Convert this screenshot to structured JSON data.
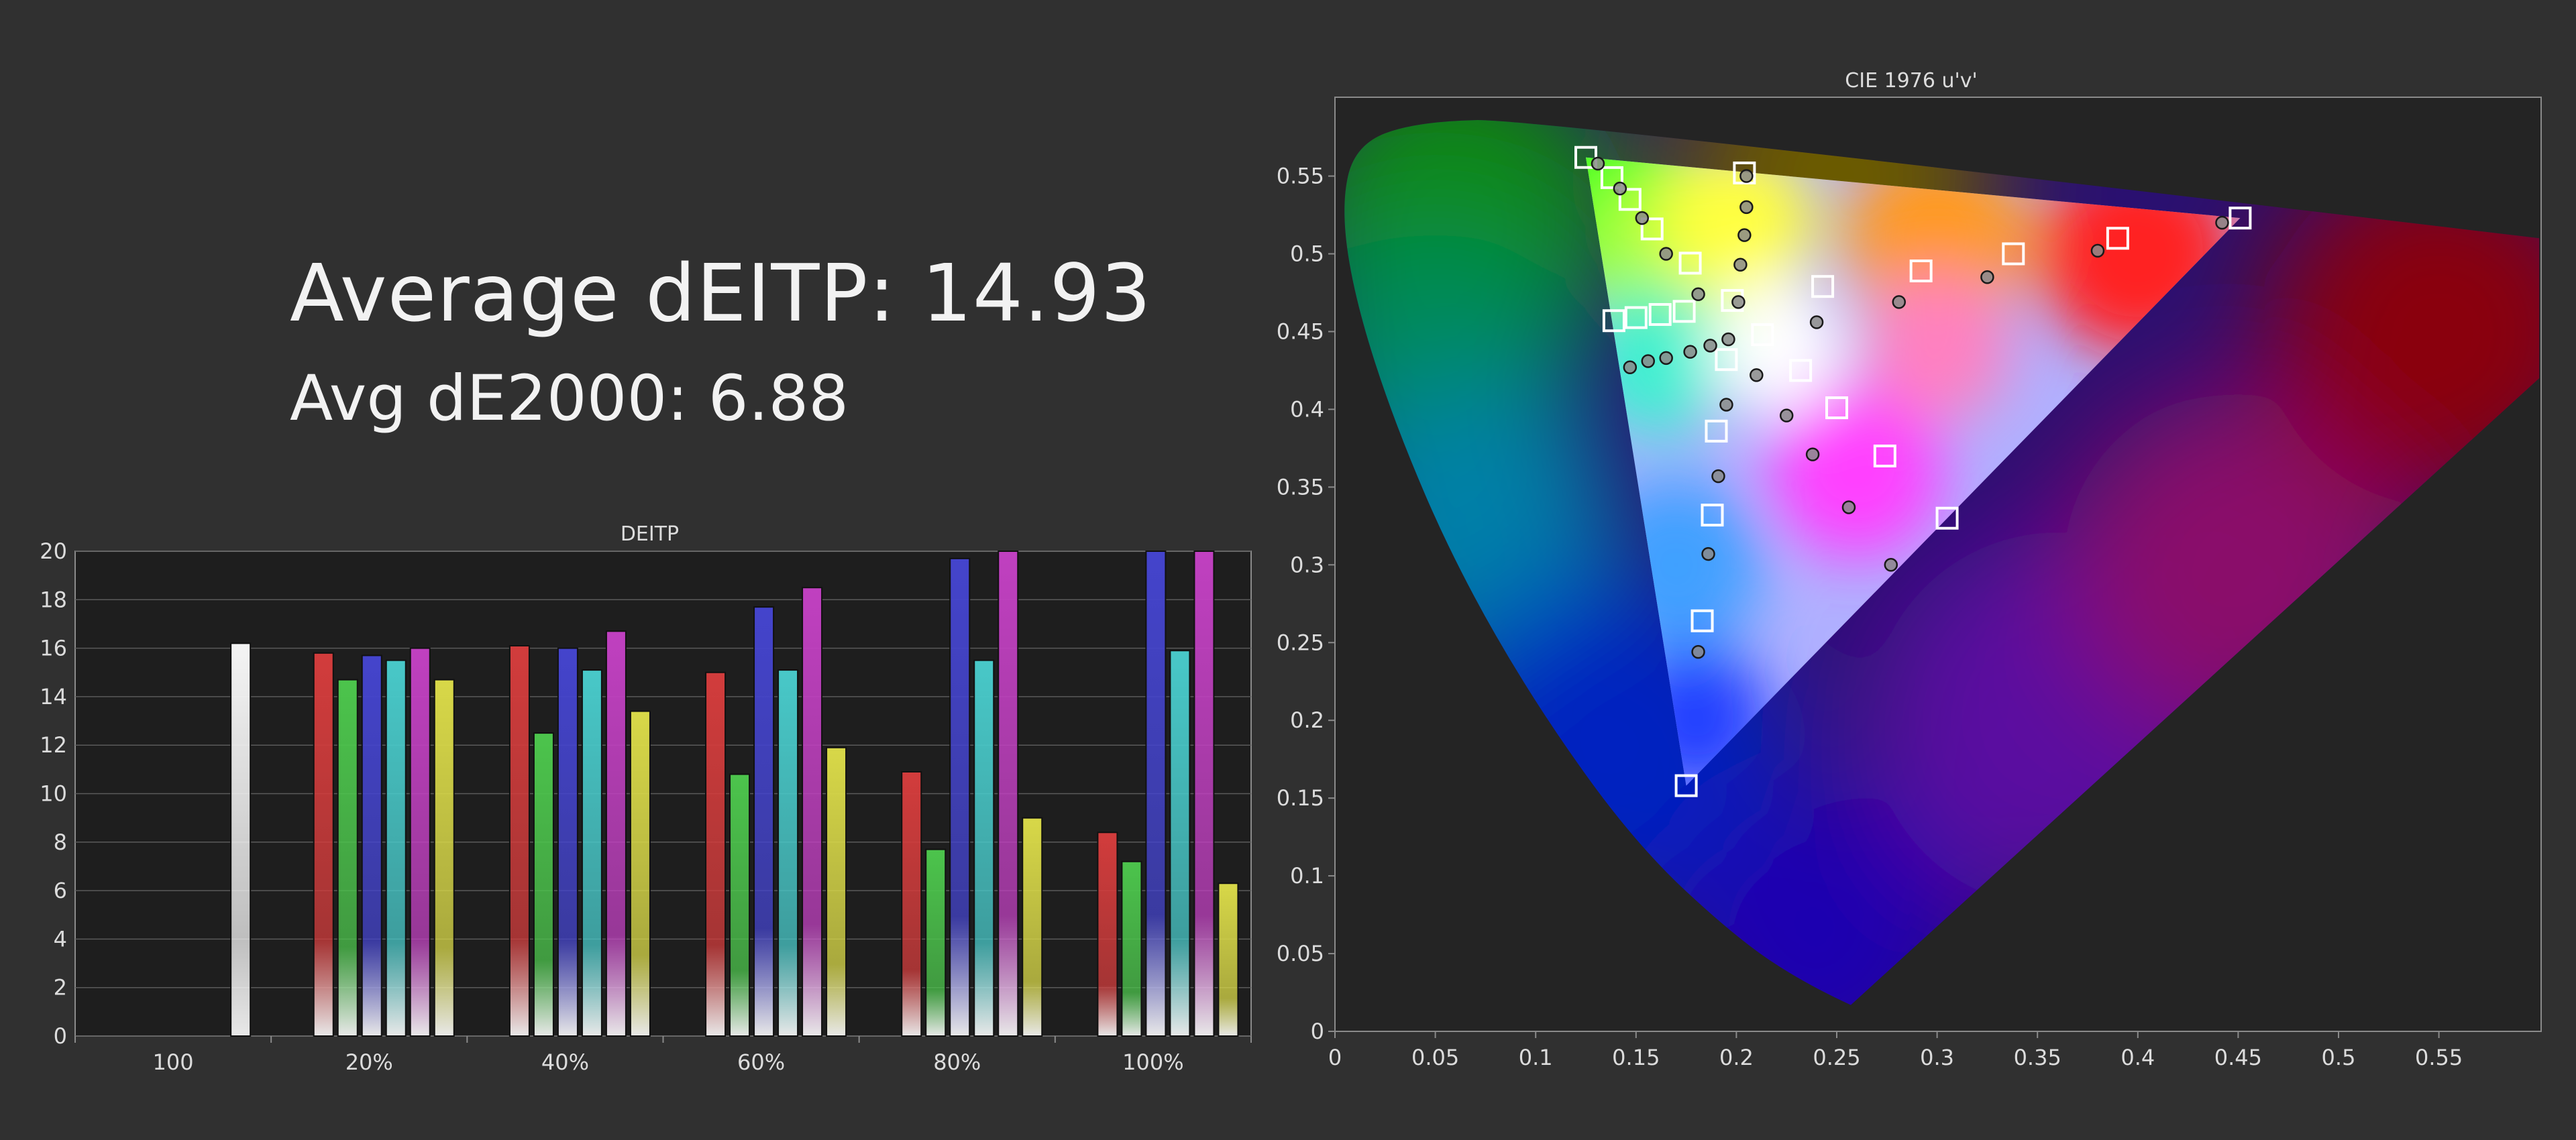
{
  "headline": {
    "average_deitp": "Average dEITP: 14.93",
    "avg_de2000": "Avg dE2000: 6.88"
  },
  "colors": {
    "background": "#303030",
    "white": "#f4f4f4",
    "red": "#d23c3c",
    "green": "#4cc44c",
    "blue": "#4444cc",
    "cyan": "#48c8c8",
    "magenta": "#c040c0",
    "yellow": "#d8d848"
  },
  "chart_data": [
    {
      "type": "bar",
      "title": "DEITP",
      "ylim": [
        0,
        20
      ],
      "yticks": [
        0,
        2,
        4,
        6,
        8,
        10,
        12,
        14,
        16,
        18,
        20
      ],
      "grid": true,
      "categories": [
        "100",
        "20%",
        "40%",
        "60%",
        "80%",
        "100%"
      ],
      "groups": [
        {
          "label": "100",
          "bars": [
            {
              "color": "white",
              "value": 16.2
            }
          ]
        },
        {
          "label": "20%",
          "bars": [
            {
              "color": "red",
              "value": 15.8
            },
            {
              "color": "green",
              "value": 14.7
            },
            {
              "color": "blue",
              "value": 15.7
            },
            {
              "color": "cyan",
              "value": 15.5
            },
            {
              "color": "magenta",
              "value": 16.0
            },
            {
              "color": "yellow",
              "value": 14.7
            }
          ]
        },
        {
          "label": "40%",
          "bars": [
            {
              "color": "red",
              "value": 16.1
            },
            {
              "color": "green",
              "value": 12.5
            },
            {
              "color": "blue",
              "value": 16.0
            },
            {
              "color": "cyan",
              "value": 15.1
            },
            {
              "color": "magenta",
              "value": 16.7
            },
            {
              "color": "yellow",
              "value": 13.4
            }
          ]
        },
        {
          "label": "60%",
          "bars": [
            {
              "color": "red",
              "value": 15.0
            },
            {
              "color": "green",
              "value": 10.8
            },
            {
              "color": "blue",
              "value": 17.7
            },
            {
              "color": "cyan",
              "value": 15.1
            },
            {
              "color": "magenta",
              "value": 18.5
            },
            {
              "color": "yellow",
              "value": 11.9
            }
          ]
        },
        {
          "label": "80%",
          "bars": [
            {
              "color": "red",
              "value": 10.9
            },
            {
              "color": "green",
              "value": 7.7
            },
            {
              "color": "blue",
              "value": 19.7
            },
            {
              "color": "cyan",
              "value": 15.5
            },
            {
              "color": "magenta",
              "value": 20.0
            },
            {
              "color": "yellow",
              "value": 9.0
            }
          ]
        },
        {
          "label": "100%",
          "bars": [
            {
              "color": "red",
              "value": 8.4
            },
            {
              "color": "green",
              "value": 7.2
            },
            {
              "color": "blue",
              "value": 20.0
            },
            {
              "color": "cyan",
              "value": 15.9
            },
            {
              "color": "magenta",
              "value": 20.0
            },
            {
              "color": "yellow",
              "value": 6.3
            }
          ]
        }
      ]
    },
    {
      "type": "scatter",
      "title": "CIE 1976 u'v'",
      "xlim": [
        0,
        0.6
      ],
      "ylim": [
        0,
        0.6
      ],
      "xticks": [
        0,
        0.05,
        0.1,
        0.15,
        0.2,
        0.25,
        0.3,
        0.35,
        0.4,
        0.45,
        0.5,
        0.55
      ],
      "yticks": [
        0,
        0.05,
        0.1,
        0.15,
        0.2,
        0.25,
        0.3,
        0.35,
        0.4,
        0.45,
        0.5,
        0.55
      ],
      "tick_labels_x": [
        "0",
        "0.05",
        "0.1",
        "0.15",
        "0.2",
        "0.25",
        "0.3",
        "0.35",
        "0.4",
        "0.45",
        "0.5",
        "0.55"
      ],
      "tick_labels_y": [
        "0",
        "0.05",
        "0.1",
        "0.15",
        "0.2",
        "0.25",
        "0.3",
        "0.35",
        "0.4",
        "0.45",
        "0.5",
        "0.55"
      ],
      "spectral_locus": [
        [
          0.257,
          0.017
        ],
        [
          0.235,
          0.03
        ],
        [
          0.2,
          0.06
        ],
        [
          0.15,
          0.12
        ],
        [
          0.1,
          0.21
        ],
        [
          0.06,
          0.3
        ],
        [
          0.03,
          0.39
        ],
        [
          0.01,
          0.47
        ],
        [
          0.003,
          0.53
        ],
        [
          0.01,
          0.57
        ],
        [
          0.04,
          0.585
        ],
        [
          0.1,
          0.587
        ],
        [
          0.6,
          0.51
        ]
      ],
      "gamut_triangle": [
        [
          0.451,
          0.523
        ],
        [
          0.125,
          0.562
        ],
        [
          0.175,
          0.158
        ]
      ],
      "targets": [
        [
          0.125,
          0.562
        ],
        [
          0.138,
          0.549
        ],
        [
          0.147,
          0.535
        ],
        [
          0.158,
          0.516
        ],
        [
          0.177,
          0.494
        ],
        [
          0.204,
          0.552
        ],
        [
          0.451,
          0.523
        ],
        [
          0.39,
          0.51
        ],
        [
          0.338,
          0.5
        ],
        [
          0.292,
          0.489
        ],
        [
          0.243,
          0.479
        ],
        [
          0.139,
          0.457
        ],
        [
          0.15,
          0.459
        ],
        [
          0.162,
          0.461
        ],
        [
          0.174,
          0.463
        ],
        [
          0.198,
          0.47
        ],
        [
          0.213,
          0.448
        ],
        [
          0.195,
          0.432
        ],
        [
          0.232,
          0.425
        ],
        [
          0.25,
          0.401
        ],
        [
          0.274,
          0.37
        ],
        [
          0.305,
          0.33
        ],
        [
          0.19,
          0.386
        ],
        [
          0.188,
          0.332
        ],
        [
          0.183,
          0.264
        ],
        [
          0.175,
          0.158
        ]
      ],
      "measured": [
        [
          0.131,
          0.558
        ],
        [
          0.142,
          0.542
        ],
        [
          0.153,
          0.523
        ],
        [
          0.165,
          0.5
        ],
        [
          0.181,
          0.474
        ],
        [
          0.205,
          0.55
        ],
        [
          0.205,
          0.53
        ],
        [
          0.204,
          0.512
        ],
        [
          0.202,
          0.493
        ],
        [
          0.201,
          0.469
        ],
        [
          0.442,
          0.52
        ],
        [
          0.38,
          0.502
        ],
        [
          0.325,
          0.485
        ],
        [
          0.281,
          0.469
        ],
        [
          0.24,
          0.456
        ],
        [
          0.147,
          0.427
        ],
        [
          0.156,
          0.431
        ],
        [
          0.165,
          0.433
        ],
        [
          0.177,
          0.437
        ],
        [
          0.187,
          0.441
        ],
        [
          0.196,
          0.445
        ],
        [
          0.21,
          0.422
        ],
        [
          0.225,
          0.396
        ],
        [
          0.238,
          0.371
        ],
        [
          0.256,
          0.337
        ],
        [
          0.277,
          0.3
        ],
        [
          0.195,
          0.403
        ],
        [
          0.191,
          0.357
        ],
        [
          0.186,
          0.307
        ],
        [
          0.181,
          0.244
        ]
      ]
    }
  ]
}
